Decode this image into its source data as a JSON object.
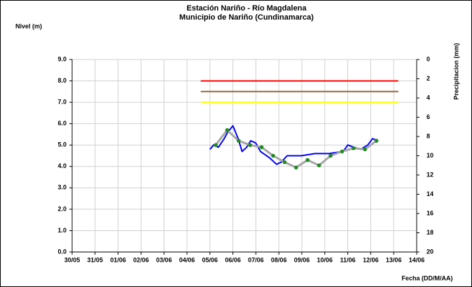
{
  "chart_data": {
    "type": "line",
    "title": "Estación Nariño  - Río Magdalena",
    "subtitle": "Municipio de Nariño (Cundinamarca)",
    "y_label": "Nivel (m)",
    "y2_label": "Precipitacion (mm)",
    "x_label": "Fecha (DD/M/AA)",
    "xlim": [
      0,
      15
    ],
    "xticks": [
      {
        "value": 0,
        "label": "30/05"
      },
      {
        "value": 1,
        "label": "31/05"
      },
      {
        "value": 2,
        "label": "01/06"
      },
      {
        "value": 3,
        "label": "02/06"
      },
      {
        "value": 4,
        "label": "03/06"
      },
      {
        "value": 5,
        "label": "04/06"
      },
      {
        "value": 6,
        "label": "05/06"
      },
      {
        "value": 7,
        "label": "06/06"
      },
      {
        "value": 8,
        "label": "07/06"
      },
      {
        "value": 9,
        "label": "08/06"
      },
      {
        "value": 10,
        "label": "09/06"
      },
      {
        "value": 11,
        "label": "10/06"
      },
      {
        "value": 12,
        "label": "11/06"
      },
      {
        "value": 13,
        "label": "12/06"
      },
      {
        "value": 14,
        "label": "13/06"
      },
      {
        "value": 15,
        "label": "14/06"
      }
    ],
    "ylim": [
      0,
      9
    ],
    "yticks": [
      {
        "value": 0,
        "label": "0.0"
      },
      {
        "value": 1,
        "label": "1.0"
      },
      {
        "value": 2,
        "label": "2.0"
      },
      {
        "value": 3,
        "label": "3.0"
      },
      {
        "value": 4,
        "label": "4.0"
      },
      {
        "value": 5,
        "label": "5.0"
      },
      {
        "value": 6,
        "label": "6.0"
      },
      {
        "value": 7,
        "label": "7.0"
      },
      {
        "value": 8,
        "label": "8.0"
      },
      {
        "value": 9,
        "label": "9.0"
      }
    ],
    "y2lim": [
      0,
      20
    ],
    "y2_inverted": true,
    "y2ticks": [
      0,
      2,
      4,
      6,
      8,
      10,
      12,
      14,
      16,
      18,
      20
    ],
    "grid": true,
    "series": [
      {
        "color": "#ff0000",
        "x": [
          5.6,
          14.2
        ],
        "values": [
          8.0,
          8.0
        ]
      },
      {
        "color": "#996633",
        "x": [
          5.6,
          14.2
        ],
        "values": [
          7.5,
          7.5
        ]
      },
      {
        "color": "#ffff00",
        "x": [
          5.6,
          14.2
        ],
        "values": [
          7.0,
          7.0
        ]
      },
      {
        "color": "#0000ff",
        "x": [
          6.0,
          6.16,
          6.37,
          6.62,
          6.77,
          7.0,
          7.23,
          7.4,
          7.6,
          7.77,
          7.99,
          8.2,
          8.6,
          8.9,
          9.1,
          9.36,
          9.97,
          10.58,
          11.19,
          11.8,
          12.0,
          12.26,
          12.56,
          12.87,
          13.08,
          13.3
        ],
        "values": [
          4.8,
          5.0,
          4.9,
          5.3,
          5.6,
          5.9,
          5.3,
          4.7,
          4.9,
          5.2,
          5.1,
          4.7,
          4.4,
          4.1,
          4.2,
          4.5,
          4.5,
          4.6,
          4.6,
          4.7,
          5.0,
          4.9,
          4.8,
          5.0,
          5.3,
          5.2
        ]
      },
      {
        "color": "#a6a6a6",
        "marker_color": "#228b22",
        "markers": true,
        "x": [
          6.25,
          6.75,
          7.25,
          7.75,
          8.25,
          8.75,
          9.25,
          9.75,
          10.25,
          10.75,
          11.25,
          11.75,
          12.25,
          12.75,
          13.25
        ],
        "values": [
          5.0,
          5.7,
          5.2,
          5.0,
          4.9,
          4.5,
          4.2,
          3.95,
          4.3,
          4.05,
          4.5,
          4.7,
          4.85,
          4.8,
          5.2
        ]
      }
    ]
  }
}
